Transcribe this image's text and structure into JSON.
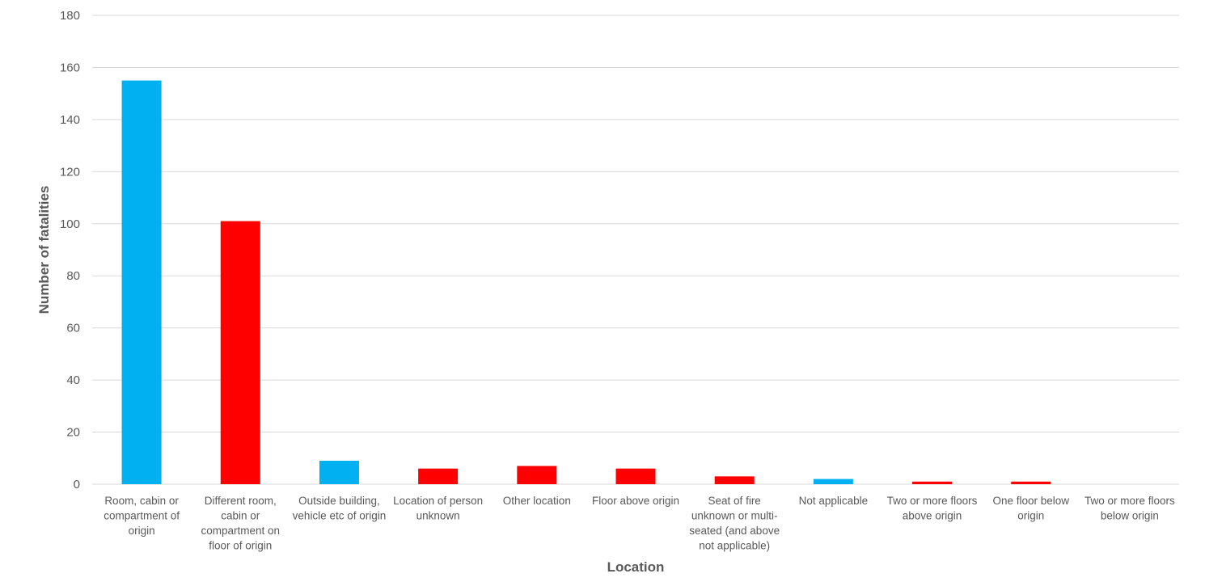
{
  "chart_data": {
    "type": "bar",
    "title": "",
    "xlabel": "Location",
    "ylabel": "Number of fatalities",
    "ylim": [
      0,
      180
    ],
    "yticks": [
      0,
      20,
      40,
      60,
      80,
      100,
      120,
      140,
      160,
      180
    ],
    "grid": true,
    "legend": "none",
    "colors": {
      "blue": "#00b0f0",
      "red": "#ff0000"
    },
    "categories": [
      "Room, cabin or compartment of origin",
      "Different room, cabin or compartment on floor of origin",
      "Outside building, vehicle etc of origin",
      "Location of person unknown",
      "Other location",
      "Floor above origin",
      "Seat of fire unknown or multi-seated (and above not applicable)",
      "Not applicable",
      "Two or more floors above origin",
      "One floor below origin",
      "Two or more floors below origin"
    ],
    "category_lines": [
      [
        "Room, cabin or",
        "compartment of",
        "origin"
      ],
      [
        "Different room,",
        "cabin or",
        "compartment on",
        "floor of origin"
      ],
      [
        "Outside building,",
        "vehicle etc of origin"
      ],
      [
        "Location of person",
        "unknown"
      ],
      [
        "Other location"
      ],
      [
        "Floor above origin"
      ],
      [
        "Seat of fire",
        "unknown or multi-",
        "seated (and above",
        "not applicable)"
      ],
      [
        "Not applicable"
      ],
      [
        "Two or more floors",
        "above origin"
      ],
      [
        "One floor below",
        "origin"
      ],
      [
        "Two or more floors",
        "below origin"
      ]
    ],
    "values": [
      155,
      101,
      9,
      6,
      7,
      6,
      3,
      2,
      1,
      1,
      0
    ],
    "bar_colors": [
      "blue",
      "red",
      "blue",
      "red",
      "red",
      "red",
      "red",
      "blue",
      "red",
      "red",
      "red"
    ]
  }
}
